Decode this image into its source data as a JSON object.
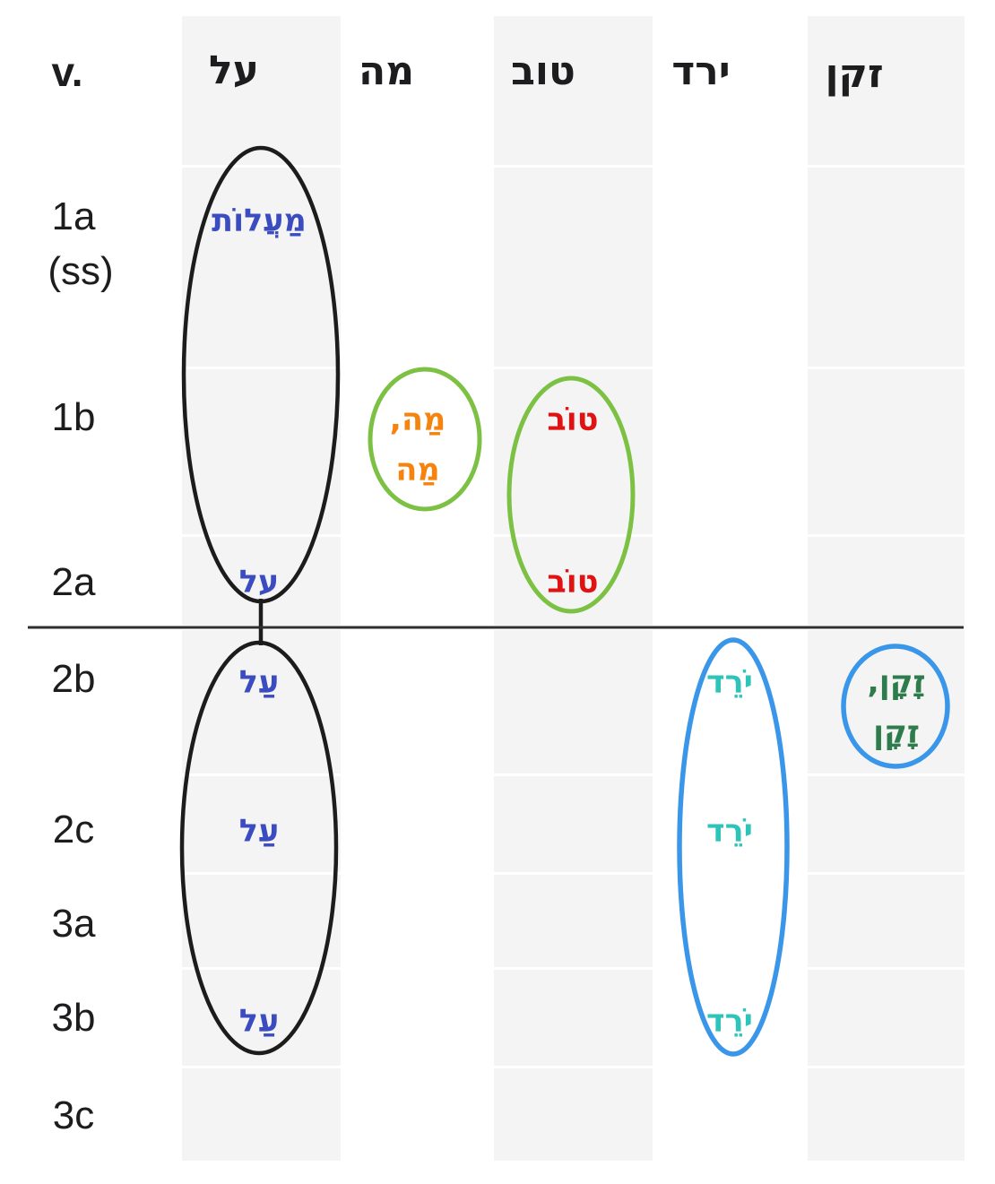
{
  "page": {
    "background": "#ffffff",
    "stripe_color": "#f4f4f4"
  },
  "header": {
    "verse_label": "v.",
    "columns": [
      {
        "id": "al",
        "label": "על",
        "shaded": true
      },
      {
        "id": "mah",
        "label": "מה",
        "shaded": false
      },
      {
        "id": "tov",
        "label": "טוב",
        "shaded": true
      },
      {
        "id": "yarad",
        "label": "ירד",
        "shaded": false
      },
      {
        "id": "zaqen",
        "label": "זקן",
        "shaded": true
      }
    ]
  },
  "rows": [
    {
      "id": "1a",
      "label": "1a",
      "sublabel": "(ss)"
    },
    {
      "id": "1b",
      "label": "1b"
    },
    {
      "id": "2a",
      "label": "2a"
    },
    {
      "id": "2b",
      "label": "2b"
    },
    {
      "id": "2c",
      "label": "2c"
    },
    {
      "id": "3a",
      "label": "3a"
    },
    {
      "id": "3b",
      "label": "3b"
    },
    {
      "id": "3c",
      "label": "3c"
    }
  ],
  "words": [
    {
      "row": "1a",
      "col": "al",
      "lines": [
        "מַעֲלוֹת"
      ],
      "color": "#3b4cc0"
    },
    {
      "row": "1b",
      "col": "mah",
      "lines": [
        "מַה,",
        "מַה"
      ],
      "color": "#f5830e"
    },
    {
      "row": "1b",
      "col": "tov",
      "lines": [
        "טוֹב"
      ],
      "color": "#e11212"
    },
    {
      "row": "2a",
      "col": "al",
      "lines": [
        "על"
      ],
      "color": "#3b4cc0"
    },
    {
      "row": "2a",
      "col": "tov",
      "lines": [
        "טוֹב"
      ],
      "color": "#e11212"
    },
    {
      "row": "2b",
      "col": "al",
      "lines": [
        "עַל"
      ],
      "color": "#3b4cc0"
    },
    {
      "row": "2b",
      "col": "yarad",
      "lines": [
        "יֹרֵד"
      ],
      "color": "#2fc4b9"
    },
    {
      "row": "2b",
      "col": "zaqen",
      "lines": [
        "זָקָן,",
        "זָקָן"
      ],
      "color": "#2e7c4c"
    },
    {
      "row": "2c",
      "col": "al",
      "lines": [
        "עַל"
      ],
      "color": "#3b4cc0"
    },
    {
      "row": "2c",
      "col": "yarad",
      "lines": [
        "יֹרֵד"
      ],
      "color": "#2fc4b9"
    },
    {
      "row": "3b",
      "col": "al",
      "lines": [
        "עַל"
      ],
      "color": "#3b4cc0"
    },
    {
      "row": "3b",
      "col": "yarad",
      "lines": [
        "יֹרֵד"
      ],
      "color": "#2fc4b9"
    }
  ],
  "groups": [
    {
      "id": "al-upper",
      "shape": "ellipse",
      "color": "#1c1c1c",
      "desc": "black ellipse circling al-column words in rows 1a-2a"
    },
    {
      "id": "al-lower",
      "shape": "ellipse",
      "color": "#1c1c1c",
      "desc": "black ellipse circling al-column words in rows 2b-3b"
    },
    {
      "id": "al-connector",
      "shape": "line",
      "color": "#1c1c1c",
      "desc": "short vertical connector joining the two black ellipses"
    },
    {
      "id": "mah-group",
      "shape": "ellipse",
      "color": "#7cc143",
      "desc": "green ellipse circling the two mah words in row 1b"
    },
    {
      "id": "tov-group",
      "shape": "ellipse",
      "color": "#7cc143",
      "desc": "green ellipse circling tov words in rows 1b and 2a"
    },
    {
      "id": "yarad-group",
      "shape": "ellipse",
      "color": "#3a96e8",
      "desc": "blue ellipse circling yarad words in rows 2b-3b"
    },
    {
      "id": "zaqen-group",
      "shape": "ellipse",
      "color": "#3a96e8",
      "desc": "blue ellipse circling the two zaqen words in row 2b"
    },
    {
      "id": "stanza-divider",
      "shape": "line",
      "color": "#2f2f2f",
      "desc": "horizontal divider line between rows 2a and 2b"
    }
  ]
}
